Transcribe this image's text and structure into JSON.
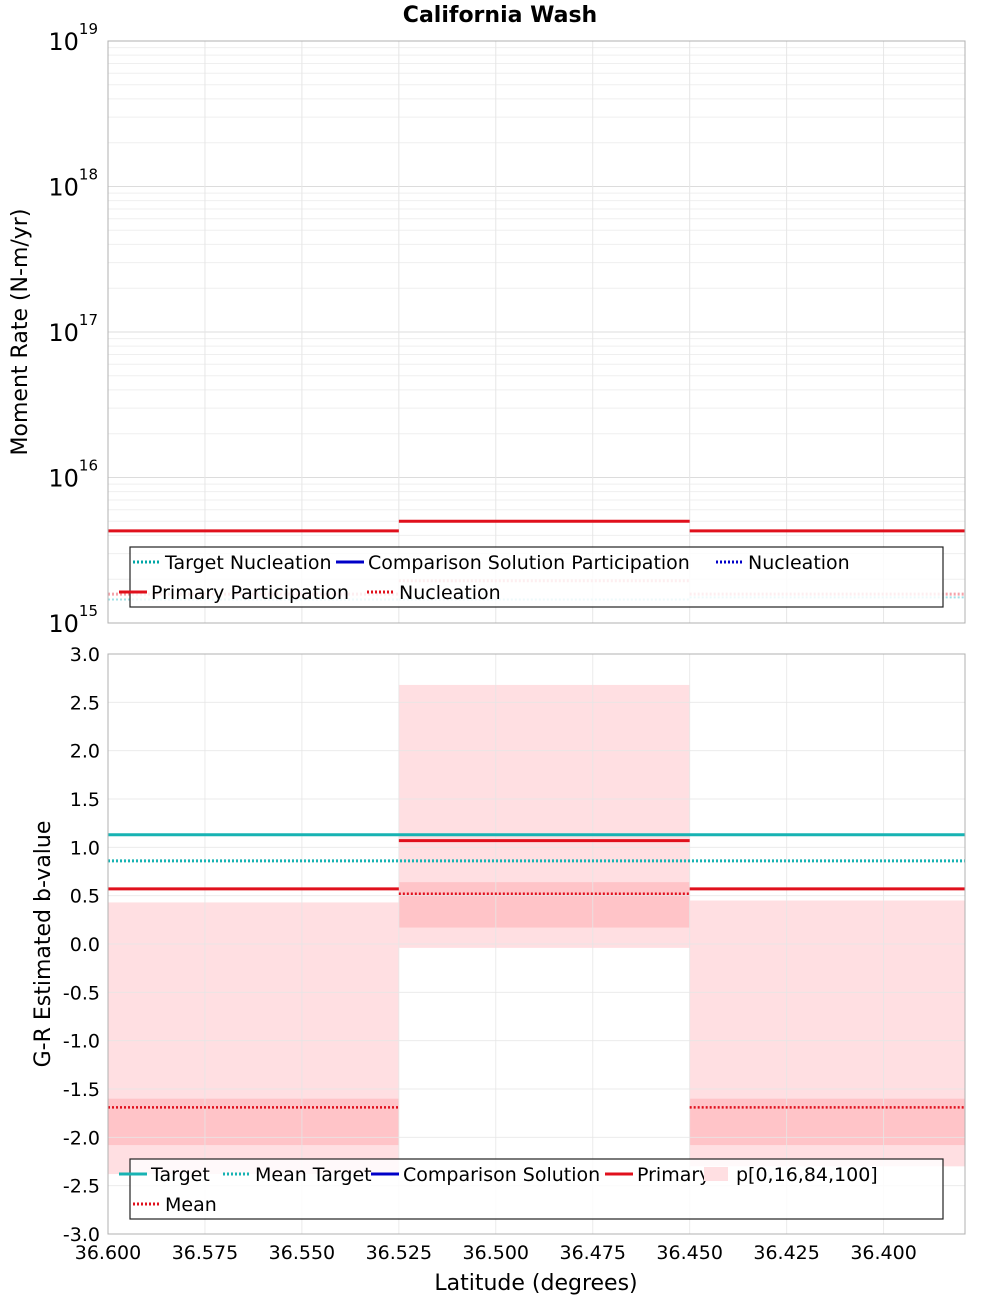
{
  "title": "California Wash",
  "chart_data": [
    {
      "type": "line",
      "name": "moment-rate",
      "ylabel": "Moment Rate (N-m/yr)",
      "yscale": "log",
      "ylim": [
        1000000000000000.0,
        1e+19
      ],
      "xlim": [
        36.6,
        36.379
      ],
      "x_reversed": true,
      "grid": true,
      "y_tick_labels": [
        {
          "v": 1000000000000000.0,
          "base": "10",
          "exp": "15"
        },
        {
          "v": 1e+16,
          "base": "10",
          "exp": "16"
        },
        {
          "v": 1e+17,
          "base": "10",
          "exp": "17"
        },
        {
          "v": 1e+18,
          "base": "10",
          "exp": "18"
        },
        {
          "v": 1e+19,
          "base": "10",
          "exp": "19"
        }
      ],
      "legend_placement": "bottom",
      "legend": [
        {
          "label": "Target Nucleation",
          "color": "#00a6a6",
          "dash": "dotted"
        },
        {
          "label": "Comparison Solution Participation",
          "color": "#0000c8",
          "dash": "solid"
        },
        {
          "label": "Nucleation",
          "color": "#0000c8",
          "dash": "dotted"
        },
        {
          "label": "Primary Participation",
          "color": "#e0101c",
          "dash": "solid"
        },
        {
          "label": "Nucleation",
          "color": "#e0101c",
          "dash": "dotted"
        }
      ],
      "series": [
        {
          "name": "Target Nucleation",
          "color": "#a0e0e6",
          "dash": "dotted",
          "width": 2,
          "segments": [
            [
              36.6,
              36.525,
              1450000000000000.0
            ],
            [
              36.525,
              36.45,
              1450000000000000.0
            ],
            [
              36.45,
              36.379,
              1500000000000000.0
            ]
          ]
        },
        {
          "name": "Primary Participation",
          "color": "#e0101c",
          "dash": "solid",
          "width": 3,
          "segments": [
            [
              36.6,
              36.525,
              4300000000000000.0
            ],
            [
              36.525,
              36.45,
              5000000000000000.0
            ],
            [
              36.45,
              36.379,
              4300000000000000.0
            ]
          ]
        },
        {
          "name": "Nucleation",
          "color": "#f5a3aa",
          "dash": "dotted",
          "width": 3,
          "segments": [
            [
              36.6,
              36.525,
              1580000000000000.0
            ],
            [
              36.525,
              36.45,
              1950000000000000.0
            ],
            [
              36.45,
              36.379,
              1580000000000000.0
            ]
          ]
        }
      ]
    },
    {
      "type": "line",
      "name": "b-value",
      "ylabel": "G-R Estimated b-value",
      "xlabel": "Latitude (degrees)",
      "ylim": [
        -3.0,
        3.0
      ],
      "xlim": [
        36.6,
        36.379
      ],
      "x_reversed": true,
      "grid": true,
      "y_tick_labels": [
        "-3.0",
        "-2.5",
        "-2.0",
        "-1.5",
        "-1.0",
        "-0.5",
        "0.0",
        "0.5",
        "1.0",
        "1.5",
        "2.0",
        "2.5",
        "3.0"
      ],
      "x_tick_labels": [
        "36.600",
        "36.575",
        "36.550",
        "36.525",
        "36.500",
        "36.475",
        "36.450",
        "36.425",
        "36.400"
      ],
      "legend_placement": "bottom",
      "legend": [
        {
          "label": "Target",
          "color": "#17b3b3",
          "dash": "solid"
        },
        {
          "label": "Mean Target",
          "color": "#17b3b3",
          "dash": "dotted"
        },
        {
          "label": "Comparison Solution",
          "color": "#0000c8",
          "dash": "solid"
        },
        {
          "label": "Primary",
          "color": "#e0101c",
          "dash": "solid"
        },
        {
          "label": "p[0,16,84,100]",
          "color": "#ffdfe2",
          "dash": "box"
        },
        {
          "label": "Mean",
          "color": "#e0101c",
          "dash": "dotted"
        }
      ],
      "bands": [
        {
          "x0": 36.6,
          "x1": 36.525,
          "p0": -2.38,
          "p16": -2.08,
          "p84": -1.6,
          "p100": 0.43
        },
        {
          "x0": 36.525,
          "x1": 36.45,
          "p0": -0.04,
          "p16": 0.17,
          "p84": 0.64,
          "p100": 2.68
        },
        {
          "x0": 36.45,
          "x1": 36.379,
          "p0": -2.3,
          "p16": -2.08,
          "p84": -1.6,
          "p100": 0.45
        }
      ],
      "series": [
        {
          "name": "Target",
          "color": "#17b3b3",
          "dash": "solid",
          "width": 3,
          "segments": [
            [
              36.6,
              36.379,
              1.13
            ]
          ]
        },
        {
          "name": "Mean Target",
          "color": "#17b3b3",
          "dash": "dotted",
          "width": 3,
          "segments": [
            [
              36.6,
              36.379,
              0.86
            ]
          ]
        },
        {
          "name": "Primary",
          "color": "#e0101c",
          "dash": "solid",
          "width": 3,
          "segments": [
            [
              36.6,
              36.525,
              0.57
            ],
            [
              36.525,
              36.45,
              1.07
            ],
            [
              36.45,
              36.379,
              0.57
            ]
          ]
        },
        {
          "name": "Mean",
          "color": "#e0101c",
          "dash": "dotted",
          "width": 2.5,
          "segments": [
            [
              36.6,
              36.525,
              -1.69
            ],
            [
              36.525,
              36.45,
              0.52
            ],
            [
              36.45,
              36.379,
              -1.69
            ]
          ]
        }
      ]
    }
  ]
}
